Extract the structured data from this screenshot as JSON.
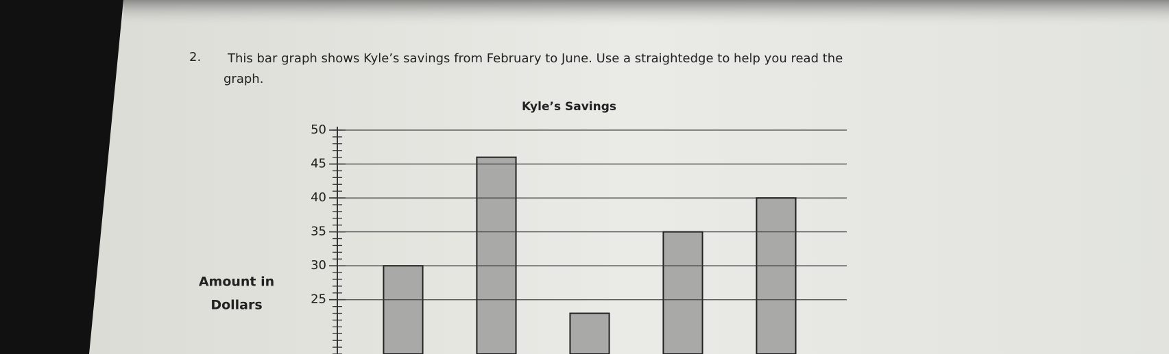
{
  "question": {
    "number": "2.",
    "text": [
      "This bar graph shows Kyle’s savings from February to June.  Use a straightedge to help you read the",
      "graph."
    ]
  },
  "chart_data": {
    "type": "bar",
    "title": "Kyle’s Savings",
    "ylabel": [
      "Amount in",
      "Dollars"
    ],
    "categories": [
      null,
      null,
      null,
      null,
      null
    ],
    "values": [
      30,
      46,
      23,
      35,
      40
    ],
    "color": "#a9a9a7",
    "ylim": [
      17,
      50
    ],
    "yticks": [
      25,
      30,
      35,
      40,
      45,
      50
    ],
    "yminorstep": 1,
    "grid": true
  }
}
